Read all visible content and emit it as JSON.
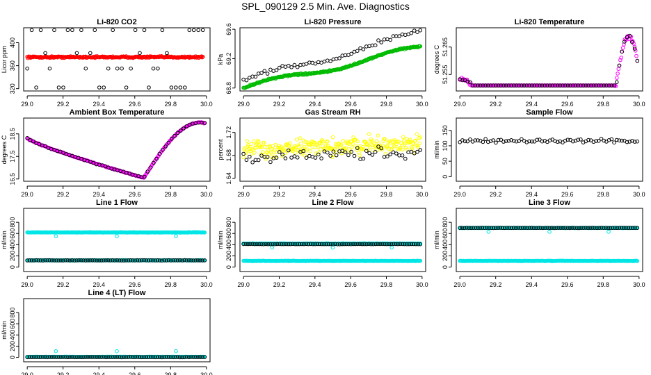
{
  "page_title": "SPL_090129  2.5 Min. Ave. Diagnostics",
  "x_ticks": [
    "29.0",
    "29.2",
    "29.4",
    "29.6",
    "29.8",
    "30.0"
  ],
  "colors": {
    "co2": "#ff0000",
    "pressure": "#00bb00",
    "temperature": "#ff00ff",
    "ambient": "#ff00ff",
    "rh": "#ffff00",
    "flow": "#0000cc",
    "line": "#00e5e5",
    "overlay": "#000000"
  },
  "chart_data": [
    {
      "type": "scatter",
      "id": "co2",
      "title": "Li-820 CO2",
      "ylabel": "Licor ppm",
      "yticks": [
        "320",
        "360",
        "400"
      ],
      "ytick_values": [
        320,
        360,
        400
      ],
      "ylim": [
        316,
        426
      ],
      "series": [
        {
          "name": "co2",
          "color": "red",
          "center": 375
        },
        {
          "name": "overlay",
          "color": "black",
          "levels": [
            322,
            355,
            382,
            422
          ]
        }
      ]
    },
    {
      "type": "scatter",
      "id": "pressure",
      "title": "Li-820 Pressure",
      "ylabel": "kPa",
      "yticks": [
        "68.8",
        "69.2",
        "69.6"
      ],
      "ytick_values": [
        68.8,
        69.2,
        69.6
      ],
      "ylim": [
        68.76,
        69.62
      ],
      "series": [
        {
          "name": "pressure",
          "color": "green",
          "start": 68.8,
          "end": 69.35
        },
        {
          "name": "overlay",
          "color": "black",
          "start": 68.9,
          "end": 69.55
        }
      ]
    },
    {
      "type": "scatter",
      "id": "temperature",
      "title": "Li-820 Temperature",
      "ylabel": "degrees C",
      "yticks": [
        "51.255",
        "51.265"
      ],
      "ytick_values": [
        51.255,
        51.265
      ],
      "ylim": [
        51.249,
        51.272
      ],
      "series": [
        {
          "name": "temperature",
          "color": "magenta",
          "base": 51.251
        },
        {
          "name": "overlay",
          "color": "black",
          "base": 51.251
        }
      ]
    },
    {
      "type": "scatter",
      "id": "ambient",
      "title": "Ambient Box Temperature",
      "ylabel": "degrees C",
      "yticks": [
        "16.5",
        "17.5",
        "18.5"
      ],
      "ytick_values": [
        16.5,
        17.5,
        18.5
      ],
      "ylim": [
        16.4,
        19.2
      ],
      "series": [
        {
          "name": "ambient",
          "color": "magenta",
          "start": 18.3,
          "min": 16.55,
          "end": 19.0
        },
        {
          "name": "overlay",
          "color": "black"
        }
      ]
    },
    {
      "type": "scatter",
      "id": "rh",
      "title": "Gas Stream RH",
      "ylabel": "percent",
      "yticks": [
        "1.64",
        "1.68",
        "1.72"
      ],
      "ytick_values": [
        1.64,
        1.68,
        1.72
      ],
      "ylim": [
        1.635,
        1.745
      ],
      "series": [
        {
          "name": "rh",
          "color": "yellow",
          "center": 1.69
        },
        {
          "name": "overlay",
          "color": "black",
          "center": 1.675
        }
      ]
    },
    {
      "type": "scatter",
      "id": "sample",
      "title": "Sample Flow",
      "ylabel": "ml/min",
      "yticks": [
        "0",
        "50",
        "100",
        "150"
      ],
      "ytick_values": [
        0,
        50,
        100,
        150
      ],
      "ylim": [
        -15,
        190
      ],
      "series": [
        {
          "name": "sample",
          "color": "blue",
          "center": 110
        },
        {
          "name": "overlay",
          "color": "black",
          "center": 116
        }
      ]
    },
    {
      "type": "scatter",
      "id": "line1",
      "title": "Line 1 Flow",
      "ylabel": "ml/min",
      "yticks": [
        "0",
        "200",
        "400",
        "600",
        "800"
      ],
      "ytick_values": [
        0,
        200,
        400,
        600,
        800
      ],
      "ylim": [
        -80,
        1050
      ],
      "series": [
        {
          "name": "line",
          "color": "cyan",
          "levels": [
            620,
            120
          ]
        },
        {
          "name": "overlay",
          "color": "black",
          "level": 120
        }
      ]
    },
    {
      "type": "scatter",
      "id": "line2",
      "title": "Line 2 Flow",
      "ylabel": "ml/min",
      "yticks": [
        "0",
        "200",
        "400",
        "600",
        "800"
      ],
      "ytick_values": [
        0,
        200,
        400,
        600,
        800
      ],
      "ylim": [
        -80,
        1050
      ],
      "series": [
        {
          "name": "line",
          "color": "cyan",
          "levels": [
            420,
            110
          ]
        },
        {
          "name": "overlay",
          "color": "black",
          "level": 410
        }
      ]
    },
    {
      "type": "scatter",
      "id": "line3",
      "title": "Line 3 Flow",
      "ylabel": "ml/min",
      "yticks": [
        "0",
        "200",
        "400",
        "600",
        "800"
      ],
      "ytick_values": [
        0,
        200,
        400,
        600,
        800
      ],
      "ylim": [
        -80,
        1050
      ],
      "series": [
        {
          "name": "line",
          "color": "cyan",
          "levels": [
            700,
            110
          ]
        },
        {
          "name": "overlay",
          "color": "black",
          "level": 700
        }
      ]
    },
    {
      "type": "scatter",
      "id": "line4",
      "title": "Line 4 (LT) Flow",
      "ylabel": "ml/min",
      "yticks": [
        "0",
        "200",
        "400",
        "600",
        "800"
      ],
      "ytick_values": [
        0,
        200,
        400,
        600,
        800
      ],
      "ylim": [
        -80,
        1050
      ],
      "series": [
        {
          "name": "line",
          "color": "cyan",
          "level": 10
        },
        {
          "name": "overlay",
          "color": "black",
          "level": 5
        }
      ]
    }
  ]
}
